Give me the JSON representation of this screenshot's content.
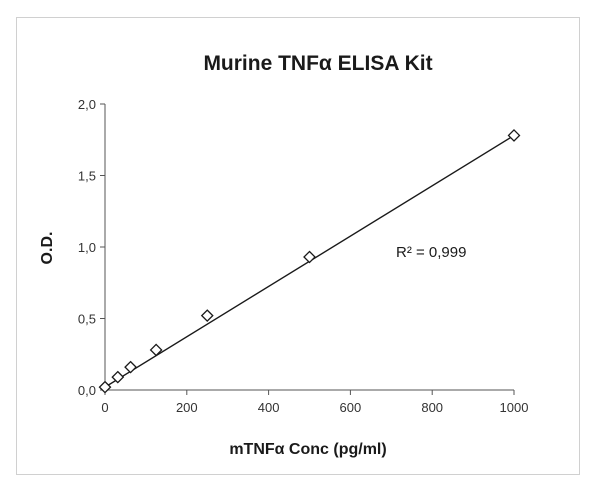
{
  "chart_data": {
    "type": "scatter",
    "title": "Murine TNFα ELISA Kit",
    "xlabel": "mTNFα Conc (pg/ml)",
    "ylabel": "O.D.",
    "xlim": [
      0,
      1000
    ],
    "ylim": [
      0,
      2.0
    ],
    "x_ticks": [
      "0",
      "200",
      "400",
      "600",
      "800",
      "1000"
    ],
    "y_ticks": [
      "0,0",
      "0,5",
      "1,0",
      "1,5",
      "2,0"
    ],
    "x_tick_values": [
      0,
      200,
      400,
      600,
      800,
      1000
    ],
    "y_tick_values": [
      0,
      0.5,
      1.0,
      1.5,
      2.0
    ],
    "grid": false,
    "marker": "diamond",
    "points": [
      {
        "x": 0,
        "y": 0.02
      },
      {
        "x": 31.25,
        "y": 0.09
      },
      {
        "x": 62.5,
        "y": 0.16
      },
      {
        "x": 125,
        "y": 0.28
      },
      {
        "x": 250,
        "y": 0.52
      },
      {
        "x": 500,
        "y": 0.93
      },
      {
        "x": 1000,
        "y": 1.78
      }
    ],
    "trendline": {
      "x": [
        0,
        1000
      ],
      "y": [
        0.02,
        1.78
      ]
    },
    "annotation": "R² = 0,999",
    "colors": {
      "line": "#1a1a1a",
      "marker_fill": "#ffffff",
      "marker_stroke": "#1a1a1a"
    }
  }
}
